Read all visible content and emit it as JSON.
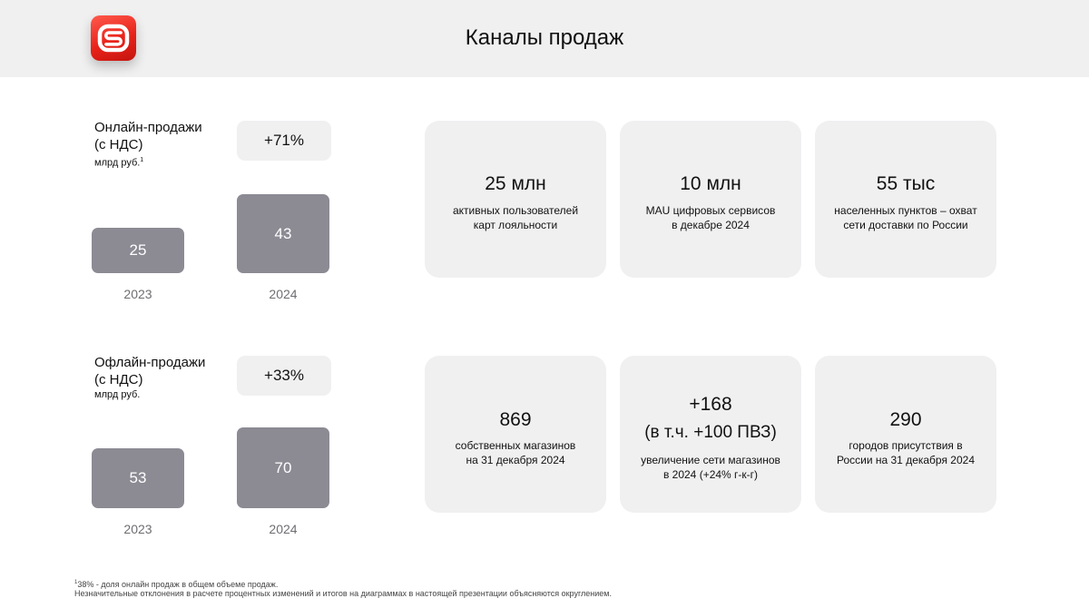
{
  "header": {
    "title": "Каналы продаж",
    "logo": "S-logo",
    "brand_color": "#e8231a"
  },
  "online": {
    "label_line1": "Онлайн-продажи",
    "label_line2": "(с НДС)",
    "unit": "млрд руб.",
    "unit_note": "1",
    "growth": "+71%",
    "bars": [
      {
        "year": "2023",
        "value": "25"
      },
      {
        "year": "2024",
        "value": "43"
      }
    ]
  },
  "offline": {
    "label_line1": "Офлайн-продажи",
    "label_line2": "(с НДС)",
    "unit": "млрд руб.",
    "growth": "+33%",
    "bars": [
      {
        "year": "2023",
        "value": "53"
      },
      {
        "year": "2024",
        "value": "70"
      }
    ]
  },
  "cards_top": [
    {
      "value": "25 млн",
      "desc1": "активных пользователей",
      "desc2": "карт лояльности"
    },
    {
      "value": "10 млн",
      "desc1": "MAU цифровых сервисов",
      "desc2": "в декабре 2024"
    },
    {
      "value": "55 тыс",
      "desc1": "населенных пунктов – охват",
      "desc2": "сети доставки по России"
    }
  ],
  "cards_bottom": [
    {
      "value": "869",
      "desc1": "собственных магазинов",
      "desc2": "на 31 декабря 2024"
    },
    {
      "value": "+168",
      "value2": "(в т.ч. +100 ПВЗ)",
      "desc1": "увеличение сети магазинов",
      "desc2": "в 2024 (+24% г-к-г)"
    },
    {
      "value": "290",
      "desc1": "городов присутствия в",
      "desc2": "России на 31 декабря 2024"
    }
  ],
  "footnotes": {
    "note1_mark": "1",
    "note1": "38% - доля онлайн продаж в общем объеме продаж.",
    "note2": "Незначительные отклонения в расчете процентных изменений и итогов на диаграммах в настоящей презентации объясняются округлением."
  }
}
